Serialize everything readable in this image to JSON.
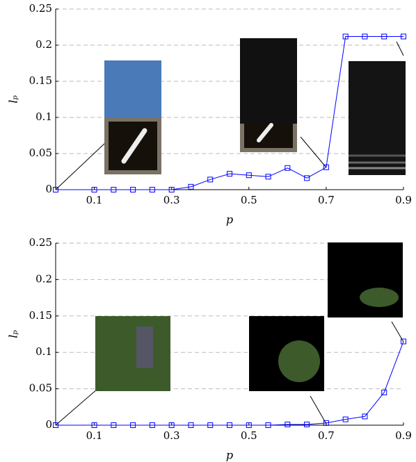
{
  "chart_data": [
    {
      "type": "line",
      "xlabel": "p",
      "ylabel": "lₚ",
      "x": [
        0,
        0.1,
        0.15,
        0.2,
        0.25,
        0.3,
        0.35,
        0.4,
        0.45,
        0.5,
        0.55,
        0.6,
        0.65,
        0.7,
        0.75,
        0.8,
        0.85,
        0.9
      ],
      "series": [
        {
          "color": "#0000ff",
          "values": [
            0,
            0,
            0,
            0,
            0,
            0,
            0.004,
            0.014,
            0.022,
            0.02,
            0.018,
            0.03,
            0.016,
            0.031,
            0.212,
            0.212,
            0.212,
            0.212
          ]
        }
      ],
      "xlim": [
        0,
        0.9
      ],
      "ylim": [
        0,
        0.25
      ],
      "xticks": [
        0.1,
        0.3,
        0.5,
        0.7,
        0.9
      ],
      "yticks": [
        0,
        0.05,
        0.1,
        0.15,
        0.2,
        0.25
      ],
      "grid": true
    },
    {
      "type": "line",
      "xlabel": "p",
      "ylabel": "lₚ",
      "x": [
        0,
        0.1,
        0.15,
        0.2,
        0.25,
        0.3,
        0.35,
        0.4,
        0.45,
        0.5,
        0.55,
        0.6,
        0.65,
        0.7,
        0.75,
        0.8,
        0.85,
        0.9
      ],
      "series": [
        {
          "color": "#0000ff",
          "values": [
            0,
            0,
            0,
            0,
            0,
            0,
            0,
            0,
            0,
            0,
            0,
            0.001,
            0.001,
            0.003,
            0.008,
            0.012,
            0.045,
            0.115
          ]
        }
      ],
      "xlim": [
        0,
        0.9
      ],
      "ylim": [
        0,
        0.25
      ],
      "xticks": [
        0.1,
        0.3,
        0.5,
        0.7,
        0.9
      ],
      "yticks": [
        0,
        0.05,
        0.1,
        0.15,
        0.2,
        0.25
      ],
      "grid": true
    }
  ]
}
